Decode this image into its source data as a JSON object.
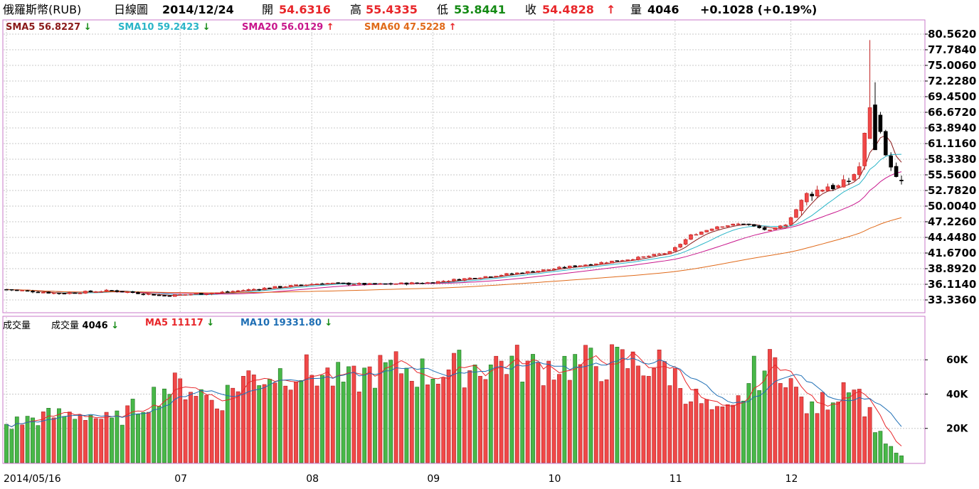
{
  "header": {
    "name": "俄羅斯幣(RUB)",
    "chart_kind": "日線圖",
    "date": "2014/12/24",
    "open_label": "開",
    "open": "54.6316",
    "high_label": "高",
    "high": "55.4335",
    "low_label": "低",
    "low": "53.8441",
    "close_label": "收",
    "close": "54.4828",
    "close_arrow": "↑",
    "volume_label": "量",
    "volume": "4046",
    "change": "+0.1028 (+0.19%)"
  },
  "price_ma": [
    {
      "label": "SMA5",
      "value": "56.8227",
      "arrow": "↓",
      "color": "#8b1a1a"
    },
    {
      "label": "SMA10",
      "value": "59.2423",
      "arrow": "↓",
      "color": "#2bb5c8"
    },
    {
      "label": "SMA20",
      "value": "56.0129",
      "arrow": "↑",
      "color": "#c8168c"
    },
    {
      "label": "SMA60",
      "value": "47.5228",
      "arrow": "↑",
      "color": "#e06a1a"
    }
  ],
  "volume_ma": [
    {
      "label": "成交量",
      "value": "4046",
      "arrow": "↓",
      "color": "#000000"
    },
    {
      "label": "MA5",
      "value": "11117",
      "arrow": "↓",
      "color": "#e8262a"
    },
    {
      "label": "MA10",
      "value": "19331.80",
      "arrow": "↓",
      "color": "#1f6fb5"
    }
  ],
  "volume_title": "成交量",
  "colors": {
    "up": "#f04848",
    "down": "#48b848",
    "grid": "#c8c8c8",
    "frame": "#c87ac8"
  },
  "chart_data": [
    {
      "type": "candlestick",
      "title": "俄羅斯幣(RUB) 日線圖",
      "y_ticks": [
        "80.5620",
        "77.7840",
        "75.0060",
        "72.2280",
        "69.4500",
        "66.6720",
        "63.8940",
        "61.1160",
        "58.3380",
        "55.5600",
        "52.7820",
        "50.0040",
        "47.2260",
        "44.4480",
        "41.6700",
        "38.8920",
        "36.1140",
        "33.3360"
      ],
      "ylim": [
        33.336,
        80.562
      ],
      "x_tick_labels": [
        "2014/05/16",
        "07",
        "08",
        "09",
        "10",
        "11",
        "12"
      ],
      "x_tick_index": [
        0,
        33,
        58,
        81,
        104,
        127,
        149
      ],
      "key_points": [
        [
          0,
          35.2
        ],
        [
          10,
          34.5
        ],
        [
          20,
          35.0
        ],
        [
          30,
          34.1
        ],
        [
          40,
          34.6
        ],
        [
          50,
          35.5
        ],
        [
          60,
          36.3
        ],
        [
          70,
          36.1
        ],
        [
          80,
          36.4
        ],
        [
          90,
          37.4
        ],
        [
          100,
          38.4
        ],
        [
          110,
          39.6
        ],
        [
          120,
          40.8
        ],
        [
          126,
          41.8
        ],
        [
          130,
          44.8
        ],
        [
          135,
          46.4
        ],
        [
          140,
          46.9
        ],
        [
          145,
          45.6
        ],
        [
          148,
          46.8
        ],
        [
          152,
          52.0
        ],
        [
          156,
          53.6
        ],
        [
          158,
          53.4
        ],
        [
          160,
          54.5
        ],
        [
          162,
          57.0
        ],
        [
          163,
          62.5
        ],
        [
          164,
          68.0
        ],
        [
          165,
          66.0
        ],
        [
          166,
          64.0
        ],
        [
          167,
          58.5
        ],
        [
          168,
          57.5
        ],
        [
          169,
          54.8
        ],
        [
          170,
          54.5
        ]
      ],
      "last_bar": {
        "date": "2014/12/24",
        "open": 54.6316,
        "high": 55.4335,
        "low": 53.8441,
        "close": 54.4828
      },
      "peak_high": 79.5,
      "moving_averages": {
        "SMA5": 56.8227,
        "SMA10": 59.2423,
        "SMA20": 56.0129,
        "SMA60": 47.5228
      },
      "grid": true
    },
    {
      "type": "bar",
      "title": "成交量",
      "y_ticks": [
        "60K",
        "40K",
        "20K"
      ],
      "ylim": [
        0,
        75000
      ],
      "volume_key_points": [
        [
          0,
          22000
        ],
        [
          5,
          26000
        ],
        [
          10,
          28000
        ],
        [
          15,
          29000
        ],
        [
          20,
          24000
        ],
        [
          25,
          33000
        ],
        [
          30,
          44000
        ],
        [
          35,
          45000
        ],
        [
          40,
          35000
        ],
        [
          45,
          50000
        ],
        [
          50,
          52000
        ],
        [
          55,
          54000
        ],
        [
          60,
          52000
        ],
        [
          65,
          47000
        ],
        [
          70,
          54000
        ],
        [
          75,
          56000
        ],
        [
          80,
          52000
        ],
        [
          85,
          55000
        ],
        [
          90,
          57000
        ],
        [
          95,
          60000
        ],
        [
          100,
          56000
        ],
        [
          105,
          58000
        ],
        [
          110,
          58000
        ],
        [
          115,
          59000
        ],
        [
          120,
          58000
        ],
        [
          125,
          57000
        ],
        [
          130,
          40000
        ],
        [
          135,
          28000
        ],
        [
          138,
          30000
        ],
        [
          142,
          52000
        ],
        [
          146,
          58000
        ],
        [
          148,
          56000
        ],
        [
          150,
          40000
        ],
        [
          153,
          30000
        ],
        [
          156,
          38000
        ],
        [
          158,
          42000
        ],
        [
          160,
          52000
        ],
        [
          162,
          40000
        ],
        [
          165,
          22000
        ],
        [
          168,
          8000
        ],
        [
          170,
          4046
        ]
      ],
      "last_volume": 4046,
      "MA5": 11117,
      "MA10": 19331.8
    }
  ]
}
